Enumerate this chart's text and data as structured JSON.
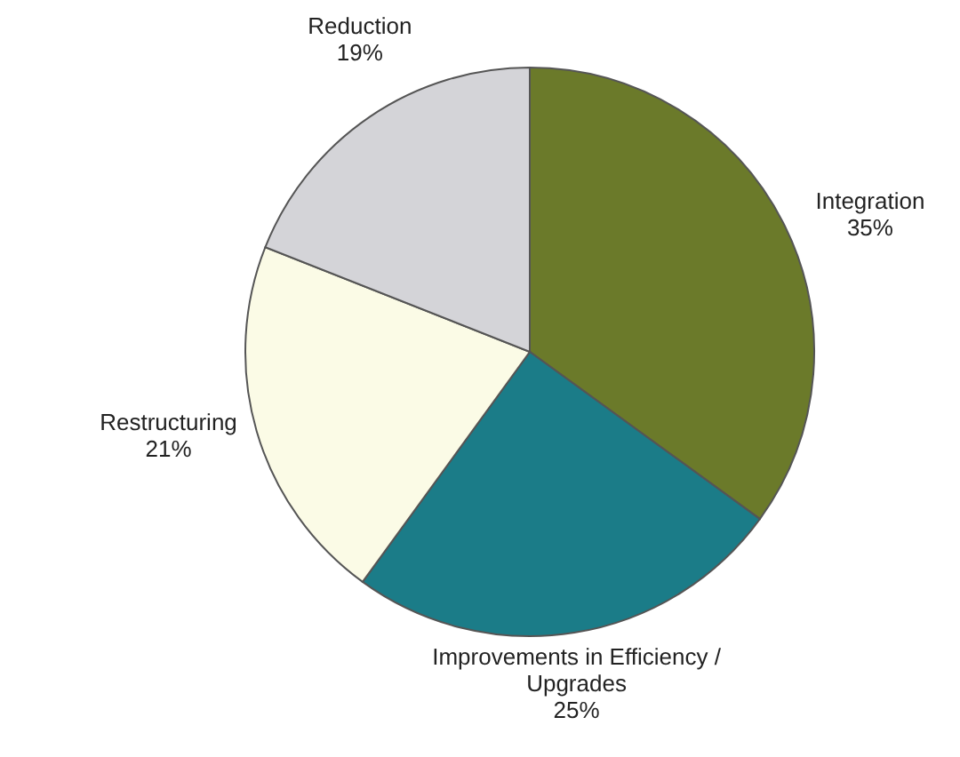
{
  "chart_data": {
    "type": "pie",
    "categories": [
      "Integration",
      "Improvements in Efficiency / Upgrades",
      "Restructuring",
      "Reduction"
    ],
    "values": [
      35,
      25,
      21,
      19
    ],
    "colors": [
      "#6b7a2a",
      "#1b7c88",
      "#fbfbe6",
      "#d4d4d8"
    ],
    "value_labels": [
      "35%",
      "25%",
      "21%",
      "19%"
    ]
  }
}
